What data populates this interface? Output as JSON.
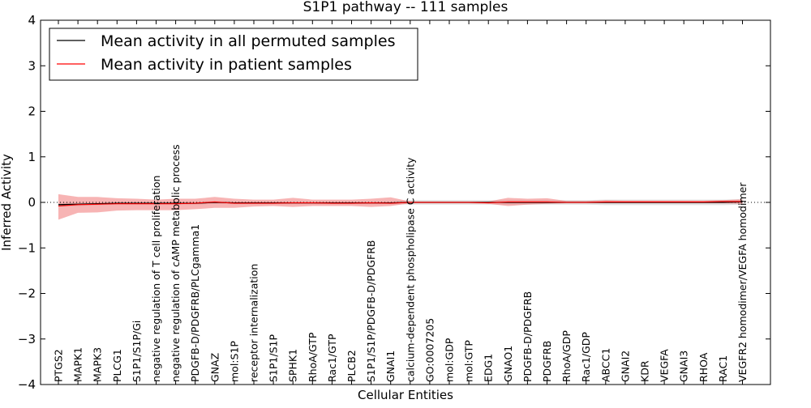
{
  "chart_data": {
    "type": "line",
    "title": "S1P1 pathway -- 111 samples",
    "xlabel": "Cellular Entities",
    "ylabel": "Inferred Activity",
    "ylim": [
      -4,
      4
    ],
    "yticks": [
      -4,
      -3,
      -2,
      -1,
      0,
      1,
      2,
      3,
      4
    ],
    "ytick_labels": [
      "−4",
      "−3",
      "−2",
      "−1",
      "0",
      "1",
      "2",
      "3",
      "4"
    ],
    "grid": false,
    "legend_position": "top-left",
    "categories": [
      "PTGS2",
      "MAPK1",
      "MAPK3",
      "PLCG1",
      "S1P1/S1P/Gi",
      "negative regulation of T cell proliferation",
      "negative regulation of cAMP metabolic process",
      "PDGFB-D/PDGFRB/PLCgamma1",
      "GNAZ",
      "mol:S1P",
      "receptor internalization",
      "S1P1/S1P",
      "SPHK1",
      "RhoA/GTP",
      "Rac1/GTP",
      "PLCB2",
      "S1P1/S1P/PDGFB-D/PDGFRB",
      "GNAI1",
      "calcium-dependent phospholipase C activity",
      "GO:0007205",
      "mol:GDP",
      "mol:GTP",
      "EDG1",
      "GNAO1",
      "PDGFB-D/PDGFRB",
      "PDGFRB",
      "RhoA/GDP",
      "Rac1/GDP",
      "ABCC1",
      "GNAI2",
      "KDR",
      "VEGFA",
      "GNAI3",
      "RHOA",
      "RAC1",
      "VEGFR2 homodimer/VEGFA homodimer"
    ],
    "series": [
      {
        "name": "Mean activity in all permuted samples",
        "color": "#000000",
        "values": [
          -0.05,
          -0.04,
          -0.03,
          -0.02,
          -0.02,
          -0.02,
          -0.02,
          -0.02,
          0.0,
          -0.01,
          -0.01,
          -0.01,
          -0.01,
          -0.01,
          -0.01,
          -0.01,
          -0.01,
          -0.01,
          0.0,
          0.0,
          0.0,
          0.0,
          0.0,
          0.0,
          0.0,
          0.0,
          0.0,
          0.0,
          0.0,
          0.0,
          0.0,
          0.0,
          0.0,
          0.0,
          0.0,
          0.01
        ],
        "band_low": [
          -0.09,
          -0.08,
          -0.06,
          -0.05,
          -0.05,
          -0.05,
          -0.05,
          -0.05,
          -0.03,
          -0.04,
          -0.04,
          -0.04,
          -0.04,
          -0.04,
          -0.04,
          -0.04,
          -0.04,
          -0.04,
          -0.05,
          -0.05,
          -0.05,
          -0.05,
          -0.05,
          -0.05,
          -0.05,
          -0.05,
          -0.05,
          -0.05,
          -0.06,
          -0.06,
          -0.06,
          -0.06,
          -0.06,
          -0.06,
          -0.06,
          -0.05
        ],
        "band_high": [
          -0.01,
          0.0,
          0.0,
          0.01,
          0.01,
          0.01,
          0.01,
          0.01,
          0.03,
          0.02,
          0.02,
          0.02,
          0.02,
          0.02,
          0.02,
          0.02,
          0.02,
          0.02,
          0.05,
          0.05,
          0.05,
          0.05,
          0.05,
          0.05,
          0.05,
          0.05,
          0.05,
          0.05,
          0.06,
          0.06,
          0.06,
          0.06,
          0.06,
          0.06,
          0.06,
          0.07
        ]
      },
      {
        "name": "Mean activity in patient samples",
        "color": "#ff0000",
        "values": [
          -0.08,
          -0.05,
          -0.04,
          -0.03,
          -0.03,
          -0.03,
          -0.03,
          -0.02,
          0.01,
          -0.02,
          -0.02,
          -0.02,
          -0.01,
          -0.01,
          -0.02,
          -0.02,
          -0.01,
          -0.02,
          0.0,
          0.0,
          0.0,
          0.0,
          -0.01,
          0.01,
          0.01,
          0.01,
          0.0,
          0.0,
          0.01,
          0.01,
          0.01,
          0.01,
          0.01,
          0.01,
          0.02,
          0.02
        ],
        "band_low": [
          -0.38,
          -0.23,
          -0.22,
          -0.18,
          -0.17,
          -0.17,
          -0.17,
          -0.15,
          -0.12,
          -0.12,
          -0.09,
          -0.08,
          -0.1,
          -0.08,
          -0.08,
          -0.08,
          -0.1,
          -0.08,
          -0.02,
          -0.02,
          -0.02,
          -0.02,
          -0.03,
          -0.08,
          -0.05,
          -0.03,
          -0.02,
          -0.02,
          -0.02,
          -0.02,
          -0.02,
          -0.02,
          -0.02,
          -0.02,
          -0.02,
          -0.03
        ],
        "band_high": [
          0.18,
          0.12,
          0.12,
          0.09,
          0.08,
          0.06,
          0.08,
          0.08,
          0.12,
          0.08,
          0.06,
          0.06,
          0.1,
          0.06,
          0.06,
          0.06,
          0.08,
          0.11,
          0.02,
          0.02,
          0.02,
          0.02,
          0.02,
          0.1,
          0.08,
          0.09,
          0.03,
          0.03,
          0.05,
          0.04,
          0.04,
          0.04,
          0.04,
          0.04,
          0.05,
          0.07
        ]
      }
    ]
  }
}
